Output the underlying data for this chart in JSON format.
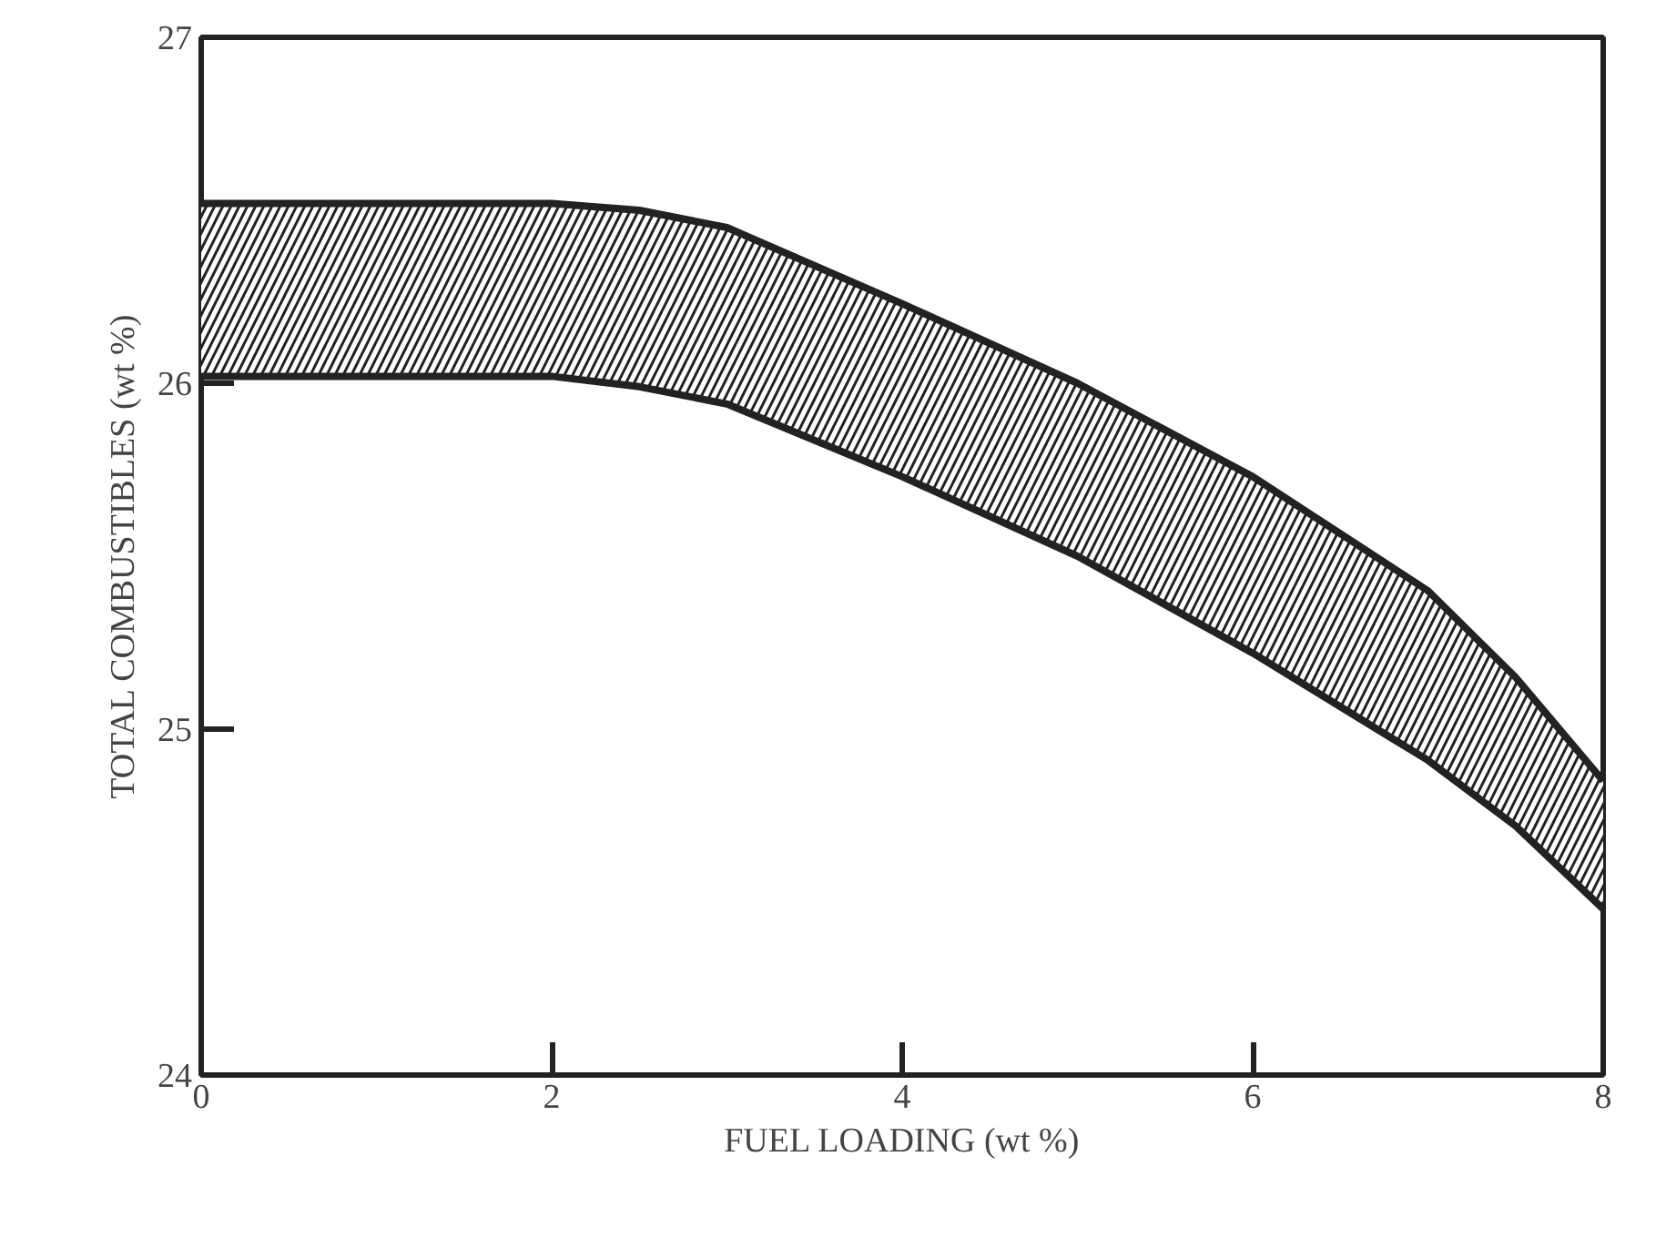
{
  "chart_data": {
    "type": "line",
    "xlabel": "FUEL LOADING (wt %)",
    "ylabel": "TOTAL COMBUSTIBLES (wt %)",
    "x": [
      0,
      1,
      2,
      2.5,
      3,
      4,
      5,
      6,
      7,
      7.5,
      8
    ],
    "series": [
      {
        "color": "#222222",
        "values": [
          26.52,
          26.52,
          26.52,
          26.5,
          26.45,
          26.23,
          26.0,
          25.73,
          25.4,
          25.15,
          24.85
        ],
        "lower": [
          26.02,
          26.02,
          26.02,
          25.99,
          25.94,
          25.73,
          25.5,
          25.22,
          24.91,
          24.72,
          24.48
        ],
        "upper": [
          26.52,
          26.52,
          26.52,
          26.5,
          26.45,
          26.23,
          26.0,
          25.73,
          25.4,
          25.15,
          24.85
        ]
      },
      {
        "color": "#222222",
        "values": [
          26.02,
          26.02,
          26.02,
          25.99,
          25.94,
          25.73,
          25.5,
          25.22,
          24.91,
          24.72,
          24.48
        ]
      }
    ],
    "xlim": [
      0,
      8
    ],
    "ylim": [
      24,
      27
    ],
    "xticks": [
      0,
      2,
      4,
      6,
      8
    ],
    "yticks": [
      24,
      25,
      26,
      27
    ],
    "grid": false,
    "marker": "none",
    "line_style": "solid"
  }
}
